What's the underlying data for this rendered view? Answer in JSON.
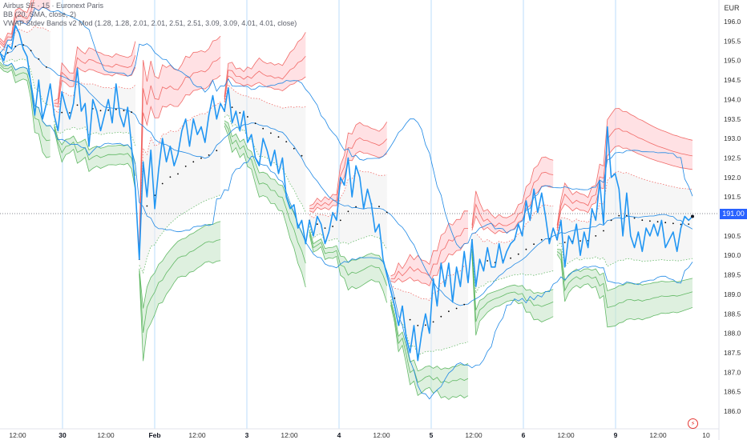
{
  "legend": {
    "line1": "Airbus SE · 15 · Euronext Paris",
    "line2": "BB (20, SMA, close, 2)",
    "line3": "VWAP Stdev Bands v2 Mod (1.28, 1.28, 2.01, 2.01, 2.51, 2.51, 3.09, 3.09, 4.01, 4.01, close)"
  },
  "currency_label": "EUR",
  "last_price_label": "191.00",
  "chart_data": {
    "type": "line",
    "title": "Airbus SE · 15 · Euronext Paris",
    "ylim": [
      185.6,
      196.6
    ],
    "y_ticks": [
      186.0,
      186.5,
      187.0,
      187.5,
      188.0,
      188.5,
      189.0,
      189.5,
      190.0,
      190.5,
      191.0,
      191.5,
      192.0,
      192.5,
      193.0,
      193.5,
      194.0,
      194.5,
      195.0,
      195.5,
      196.0
    ],
    "x_labels": [
      "12:00",
      "30",
      "12:00",
      "Feb",
      "12:00",
      "3",
      "12:00",
      "4",
      "12:00",
      "5",
      "12:00",
      "6",
      "12:00",
      "9",
      "12:00",
      "10"
    ],
    "session_start_markers": [
      "30",
      "Feb",
      "3",
      "4",
      "5",
      "6",
      "9"
    ],
    "last_price": 191.0,
    "colors": {
      "price": "#2196f3",
      "upper_band": "#ef5350",
      "lower_band": "#4caf50",
      "vwap": "#000000",
      "bb": "#1e88e5",
      "upper_fill": "#ffcdd2",
      "lower_fill": "#c8e6c9",
      "neutral_fill": "#eeeeee"
    },
    "series": [
      {
        "key": "price",
        "values": [
          195.2,
          195.0,
          195.4,
          195.3,
          195.9,
          195.7,
          195.3,
          195.1,
          194.4,
          193.6,
          194.5,
          193.5,
          193.9,
          194.4,
          193.6,
          193.2,
          194.2,
          193.8,
          193.5,
          193.9,
          194.8,
          193.7,
          193.9,
          192.8,
          194.0,
          193.7,
          193.2,
          193.6,
          194.0,
          193.4,
          194.4,
          193.6,
          193.3,
          193.8,
          192.8,
          191.7,
          189.9,
          192.4,
          191.5,
          192.7,
          191.2,
          192.2,
          193.0,
          192.4,
          192.8,
          192.3,
          192.6,
          193.2,
          193.5,
          192.8,
          193.5,
          193.1,
          193.3,
          192.9,
          193.6,
          194.1,
          193.5,
          193.9,
          193.7,
          194.3,
          193.4,
          193.7,
          193.2,
          193.7,
          192.9,
          193.1,
          192.5,
          192.3,
          193.0,
          192.7,
          192.3,
          192.7,
          192.1,
          192.5,
          191.5,
          191.2,
          191.3,
          190.7,
          190.9,
          190.3,
          190.9,
          190.5,
          191.0,
          190.8,
          190.3,
          190.6,
          191.1,
          190.9,
          192.0,
          191.8,
          192.5,
          191.5,
          192.3,
          192.0,
          191.2,
          191.7,
          191.3,
          190.6,
          190.8,
          189.9,
          189.5,
          189.1,
          188.7,
          188.2,
          188.7,
          187.9,
          187.5,
          188.2,
          187.3,
          188.0,
          188.5,
          188.0,
          189.4,
          188.7,
          189.8,
          189.2,
          189.8,
          188.8,
          189.7,
          189.2,
          190.1,
          189.3,
          190.4,
          189.2,
          189.9,
          189.6,
          190.2,
          189.7,
          189.7,
          190.3,
          189.8,
          190.1,
          190.3,
          190.4,
          190.8,
          190.5,
          191.4,
          190.9,
          191.7,
          191.1,
          191.6,
          191.0,
          190.3,
          190.7,
          190.4,
          190.9,
          189.7,
          190.5,
          190.3,
          190.8,
          190.0,
          190.6,
          190.2,
          191.2,
          190.9,
          191.9,
          190.8,
          193.3,
          192.0,
          192.1,
          191.7,
          190.5,
          191.6,
          190.5,
          190.2,
          190.6,
          190.1,
          190.7,
          190.5,
          190.8,
          190.5,
          190.9,
          190.2,
          190.4,
          190.6,
          190.1,
          190.7,
          191.0,
          190.9,
          191.0
        ],
        "color_key": "price"
      }
    ]
  }
}
